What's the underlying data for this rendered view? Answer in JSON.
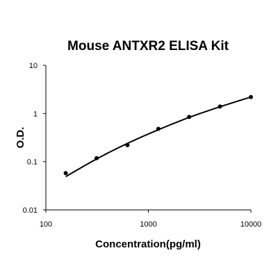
{
  "chart_data": {
    "type": "scatter",
    "title": "Mouse ANTXR2 ELISA Kit",
    "xlabel": "Concentration(pg/ml)",
    "ylabel": "O.D.",
    "x_scale": "log",
    "y_scale": "log",
    "xlim": [
      100,
      10000
    ],
    "ylim": [
      0.01,
      10
    ],
    "x_ticks": [
      100,
      1000,
      10000
    ],
    "x_tick_labels": [
      "100",
      "1000",
      "10000"
    ],
    "y_ticks": [
      0.01,
      0.1,
      1,
      10
    ],
    "y_tick_labels": [
      "0.01",
      "0.1",
      "1",
      "10"
    ],
    "grid": false,
    "series": [
      {
        "x": [
          156.25,
          312.5,
          625,
          1250,
          2500,
          5000,
          10000
        ],
        "y": [
          0.058,
          0.118,
          0.22,
          0.48,
          0.85,
          1.4,
          2.2
        ]
      }
    ],
    "fit_curve": {
      "x": [
        156.25,
        312.5,
        625,
        1250,
        2500,
        5000,
        10000
      ],
      "y": [
        0.049,
        0.114,
        0.24,
        0.46,
        0.83,
        1.38,
        2.2
      ]
    }
  }
}
